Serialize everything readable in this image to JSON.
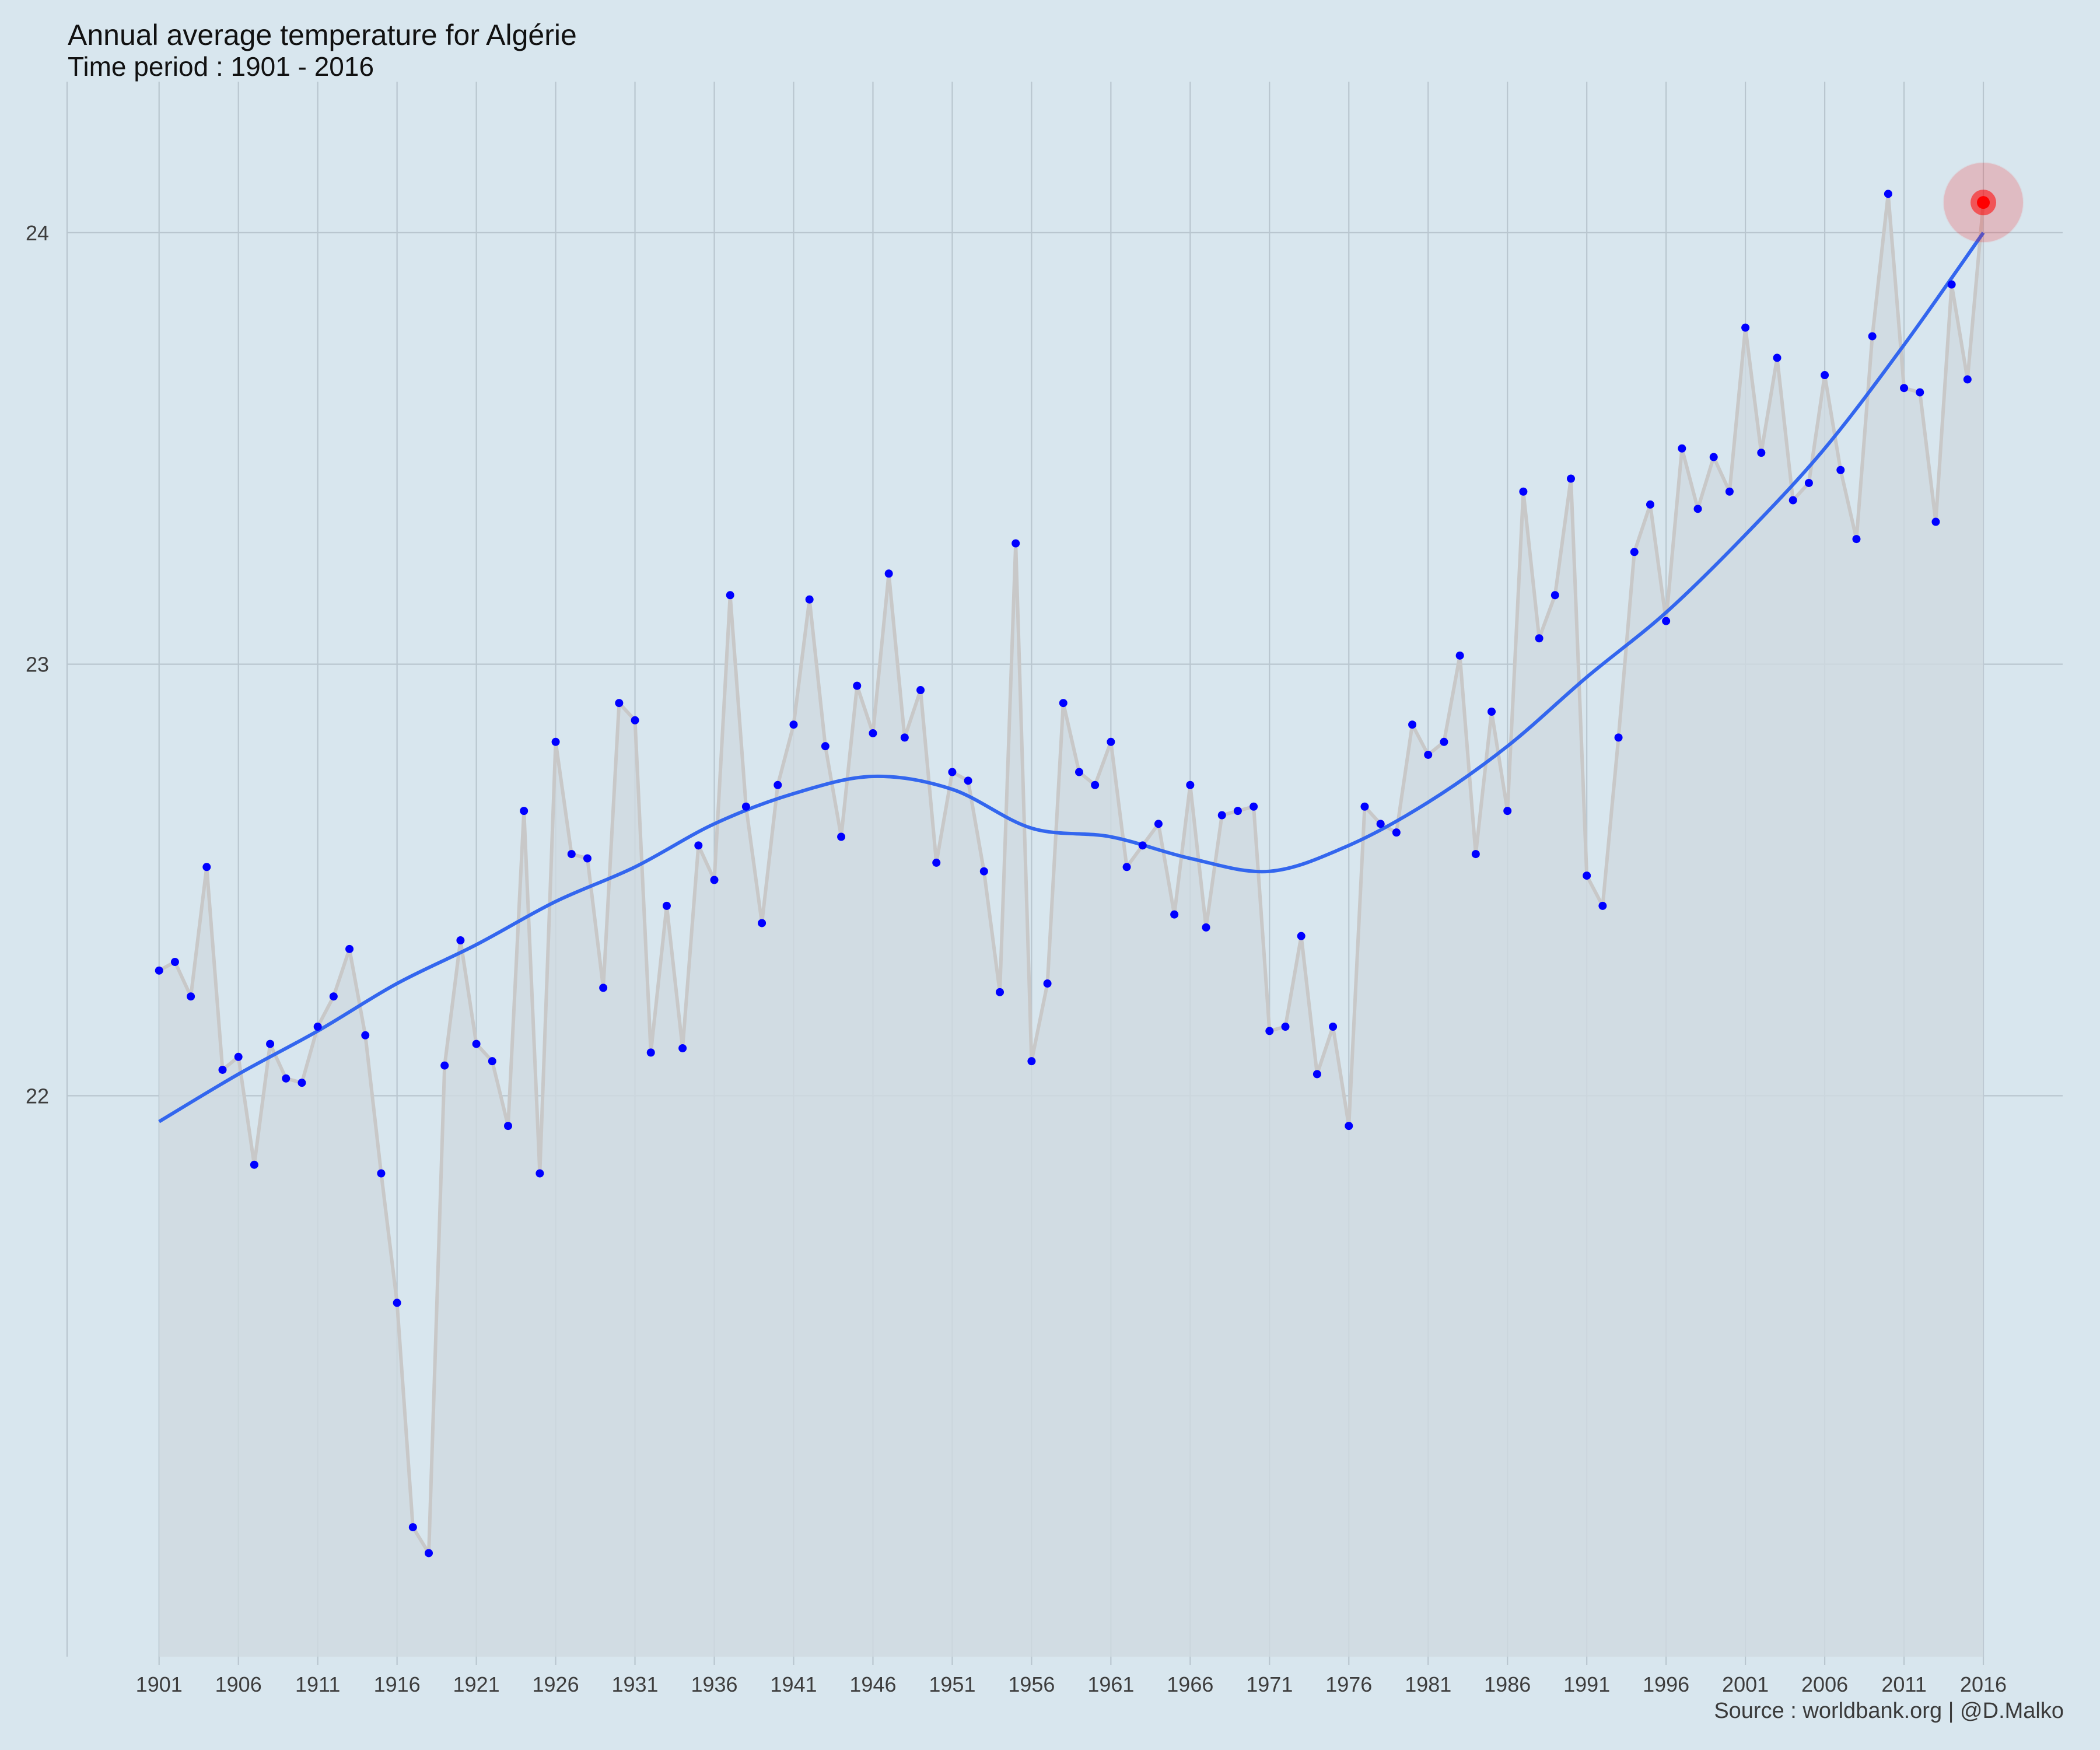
{
  "title": "Annual average temperature for Algérie",
  "subtitle": "Time period : 1901 - 2016",
  "caption": "Source : worldbank.org | @D.Malko",
  "colors": {
    "background": "#d8e6ee",
    "grid": "#b9c6cf",
    "area_fill": "#cfdae0",
    "line": "#c8c8c8",
    "points": "#0000ff",
    "trend": "#3366ee",
    "highlight": "#ff0000"
  },
  "chart_data": {
    "type": "line",
    "title": "Annual average temperature for Algérie",
    "subtitle": "Time period : 1901 - 2016",
    "xlabel": "",
    "ylabel": "",
    "xlim": [
      1895.2,
      2021
    ],
    "ylim": [
      20.7,
      24.35
    ],
    "x_ticks": [
      1901,
      1906,
      1911,
      1916,
      1921,
      1926,
      1931,
      1936,
      1941,
      1946,
      1951,
      1956,
      1961,
      1966,
      1971,
      1976,
      1981,
      1986,
      1991,
      1996,
      2001,
      2006,
      2011,
      2016
    ],
    "y_ticks": [
      22,
      23,
      24
    ],
    "grid": true,
    "legend": "none",
    "highlight_year": 2016,
    "series": [
      {
        "x": [
          1901,
          1902,
          1903,
          1904,
          1905,
          1906,
          1907,
          1908,
          1909,
          1910,
          1911,
          1912,
          1913,
          1914,
          1915,
          1916,
          1917,
          1918,
          1919,
          1920,
          1921,
          1922,
          1923,
          1924,
          1925,
          1926,
          1927,
          1928,
          1929,
          1930,
          1931,
          1932,
          1933,
          1934,
          1935,
          1936,
          1937,
          1938,
          1939,
          1940,
          1941,
          1942,
          1943,
          1944,
          1945,
          1946,
          1947,
          1948,
          1949,
          1950,
          1951,
          1952,
          1953,
          1954,
          1955,
          1956,
          1957,
          1958,
          1959,
          1960,
          1961,
          1962,
          1963,
          1964,
          1965,
          1966,
          1967,
          1968,
          1969,
          1970,
          1971,
          1972,
          1973,
          1974,
          1975,
          1976,
          1977,
          1978,
          1979,
          1980,
          1981,
          1982,
          1983,
          1984,
          1985,
          1986,
          1987,
          1988,
          1989,
          1990,
          1991,
          1992,
          1993,
          1994,
          1995,
          1996,
          1997,
          1998,
          1999,
          2000,
          2001,
          2002,
          2003,
          2004,
          2005,
          2006,
          2007,
          2008,
          2009,
          2010,
          2011,
          2012,
          2013,
          2014,
          2015,
          2016
        ],
        "y": [
          22.29,
          22.31,
          22.23,
          22.53,
          22.06,
          22.09,
          21.84,
          22.12,
          22.04,
          22.03,
          22.16,
          22.23,
          22.34,
          22.14,
          21.82,
          21.52,
          21.0,
          20.94,
          22.07,
          22.36,
          22.12,
          22.08,
          21.93,
          22.66,
          21.82,
          22.82,
          22.56,
          22.55,
          22.25,
          22.91,
          22.87,
          22.1,
          22.44,
          22.11,
          22.58,
          22.5,
          23.16,
          22.67,
          22.4,
          22.72,
          22.86,
          23.15,
          22.81,
          22.6,
          22.95,
          22.84,
          23.21,
          22.83,
          22.94,
          22.54,
          22.75,
          22.73,
          22.52,
          22.24,
          23.28,
          22.08,
          22.26,
          22.91,
          22.75,
          22.72,
          22.82,
          22.53,
          22.58,
          22.63,
          22.42,
          22.72,
          22.39,
          22.65,
          22.66,
          22.67,
          22.15,
          22.16,
          22.37,
          22.05,
          22.16,
          21.93,
          22.67,
          22.63,
          22.61,
          22.86,
          22.79,
          22.82,
          23.02,
          22.56,
          22.89,
          22.66,
          23.4,
          23.06,
          23.16,
          23.43,
          22.51,
          22.44,
          22.83,
          23.26,
          23.37,
          23.1,
          23.5,
          23.36,
          23.48,
          23.4,
          23.78,
          23.49,
          23.71,
          23.38,
          23.42,
          23.67,
          23.45,
          23.29,
          23.76,
          24.09,
          23.64,
          23.63,
          23.33,
          23.88,
          23.66,
          24.07
        ]
      }
    ],
    "trend": {
      "x": [
        1901,
        1906,
        1911,
        1916,
        1921,
        1926,
        1931,
        1936,
        1941,
        1946,
        1951,
        1956,
        1961,
        1966,
        1971,
        1976,
        1981,
        1986,
        1991,
        1996,
        2001,
        2006,
        2011,
        2016
      ],
      "y": [
        21.94,
        22.05,
        22.15,
        22.26,
        22.35,
        22.45,
        22.53,
        22.63,
        22.7,
        22.74,
        22.71,
        22.62,
        22.6,
        22.55,
        22.52,
        22.58,
        22.68,
        22.81,
        22.97,
        23.12,
        23.3,
        23.5,
        23.74,
        24.0
      ]
    }
  }
}
